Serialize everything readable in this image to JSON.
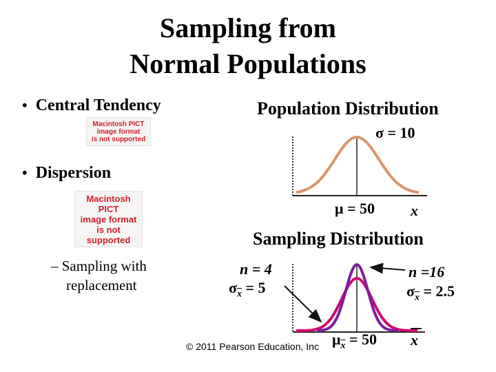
{
  "title_line1": "Sampling from",
  "title_line2": "Normal Populations",
  "bullets": {
    "central_tendency": "Central Tendency",
    "dispersion": "Dispersion",
    "sampling_with_line1": "– Sampling with",
    "sampling_with_line2": "replacement"
  },
  "pict_placeholder_1": "Macintosh PICT\nimage format\nis not supported",
  "pict_placeholder_2": "Macintosh PICT\nimage format\nis not supported",
  "population": {
    "heading": "Population Distribution",
    "sigma_symbol": "σ",
    "sigma_value": " = 10",
    "mu_symbol": "μ",
    "mu_value": " = 50",
    "x_label": "x"
  },
  "sampling": {
    "heading": "Sampling Distribution",
    "n4_label": "n = 4",
    "n4_sigma_symbol": "σ",
    "n4_sub": "x",
    "n4_value": " = 5",
    "n16_label": "n =16",
    "n16_sigma_symbol": "σ",
    "n16_sub": "x",
    "n16_value": " = 2.5",
    "mu_symbol": "μ",
    "mu_sub": "x",
    "mu_value": " = 50",
    "x_label": "x"
  },
  "copyright": "© 2011 Pearson Education, Inc",
  "colors": {
    "population_curve": "#d9956a",
    "sample_n4_curve": "#d10a6e",
    "sample_n16_curve": "#7a1fa2"
  }
}
